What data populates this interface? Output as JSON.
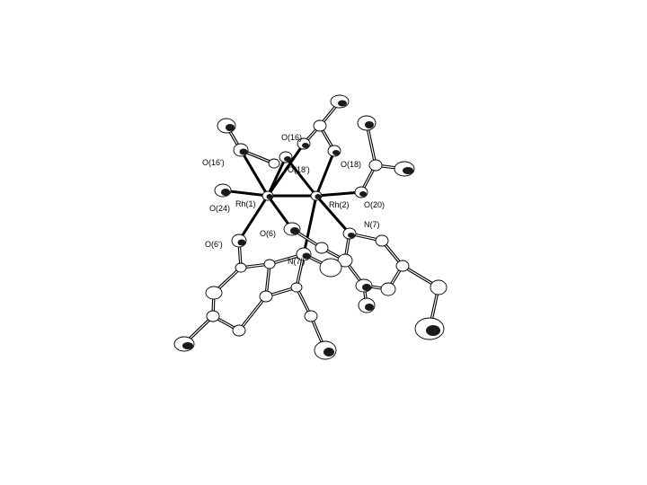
{
  "figure": {
    "labels": {
      "O16": "O(16)",
      "O16p": "O(16')",
      "O18p": "O(18')",
      "O18": "O(18)",
      "Rh1": "Rh(1)",
      "Rh2": "Rh(2)",
      "O24": "O(24)",
      "O20": "O(20)",
      "N7": "N(7)",
      "O6": "O(6)",
      "N7p": "N(7')",
      "O6p": "O(6')"
    },
    "colors": {
      "ink": "#000000",
      "background": "#ffffff"
    }
  }
}
